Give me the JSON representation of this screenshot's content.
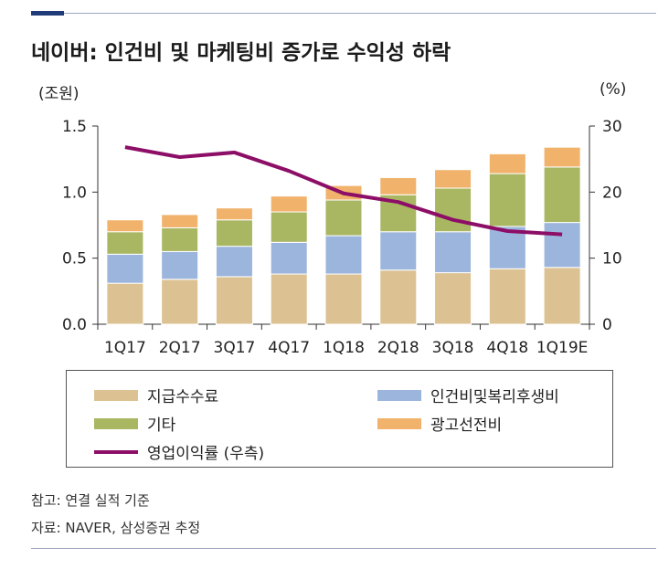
{
  "title": "네이버: 인건비 및 마케팅비 증가로 수익성 하락",
  "colors": {
    "personnel": "#dcc293",
    "labor_welfare": "#9cb5dc",
    "other": "#a9b763",
    "ad": "#f1b26c",
    "margin": "#8d0e67"
  },
  "chart_data": {
    "type": "bar",
    "stacked": true,
    "left_unit": "(조원)",
    "right_unit": "(%)",
    "categories": [
      "1Q17",
      "2Q17",
      "3Q17",
      "4Q17",
      "1Q18",
      "2Q18",
      "3Q18",
      "4Q18",
      "1Q19E"
    ],
    "ylim": [
      0,
      1.5
    ],
    "y_ticks": [
      "0.0",
      "0.5",
      "1.0",
      "1.5"
    ],
    "y2lim": [
      0,
      30
    ],
    "y2_ticks": [
      "0",
      "10",
      "20",
      "30"
    ],
    "series": [
      {
        "name": "지급수수료",
        "values": [
          0.31,
          0.34,
          0.36,
          0.38,
          0.38,
          0.41,
          0.39,
          0.42,
          0.43
        ]
      },
      {
        "name": "인건비및복리후생비",
        "values": [
          0.22,
          0.21,
          0.23,
          0.24,
          0.29,
          0.29,
          0.31,
          0.32,
          0.34
        ]
      },
      {
        "name": "기타",
        "values": [
          0.17,
          0.18,
          0.2,
          0.23,
          0.27,
          0.28,
          0.33,
          0.4,
          0.42
        ]
      },
      {
        "name": "광고선전비",
        "values": [
          0.09,
          0.1,
          0.09,
          0.12,
          0.11,
          0.13,
          0.14,
          0.15,
          0.15
        ]
      },
      {
        "name": "영업이익률 (우측)",
        "type": "line",
        "axis": "right",
        "values": [
          26.8,
          25.3,
          26.0,
          23.2,
          19.8,
          18.5,
          15.8,
          14.1,
          13.6
        ]
      }
    ],
    "legend_placement": "bottom"
  },
  "legend": {
    "item1": "지급수수료",
    "item2": "인건비및복리후생비",
    "item3": "기타",
    "item4": "광고선전비",
    "item5": "영업이익률 (우측)"
  },
  "notes": {
    "line1": "참고: 연결 실적 기준",
    "line2": "자료: NAVER, 삼성증권 추정"
  }
}
